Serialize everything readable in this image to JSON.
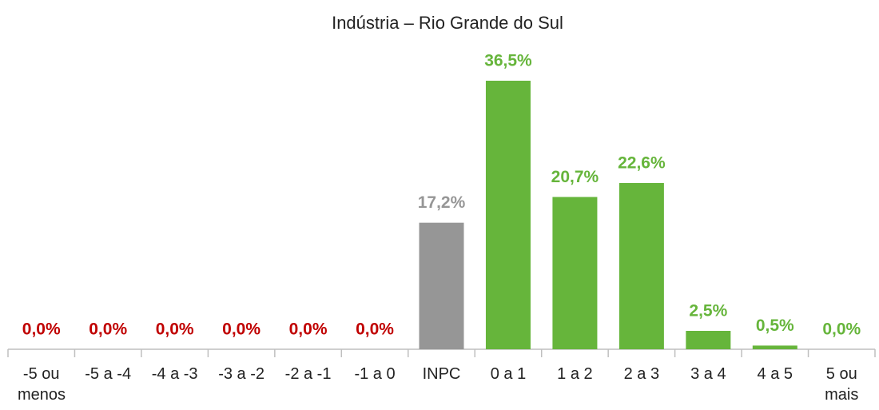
{
  "chart_data": {
    "type": "bar",
    "title": "Indústria – Rio Grande do Sul",
    "categories": [
      "-5 ou menos",
      "-5 a -4",
      "-4 a -3",
      "-3 a -2",
      "-2 a -1",
      "-1 a 0",
      "INPC",
      "0 a 1",
      "1 a 2",
      "2 a 3",
      "3 a 4",
      "4 a 5",
      "5 ou mais"
    ],
    "values": [
      0.0,
      0.0,
      0.0,
      0.0,
      0.0,
      0.0,
      17.2,
      36.5,
      20.7,
      22.6,
      2.5,
      0.5,
      0.0
    ],
    "value_labels": [
      "0,0%",
      "0,0%",
      "0,0%",
      "0,0%",
      "0,0%",
      "0,0%",
      "17,2%",
      "36,5%",
      "20,7%",
      "22,6%",
      "2,5%",
      "0,5%",
      "0,0%"
    ],
    "colors": [
      "#c00000",
      "#c00000",
      "#c00000",
      "#c00000",
      "#c00000",
      "#c00000",
      "#969696",
      "#66b53b",
      "#66b53b",
      "#66b53b",
      "#66b53b",
      "#66b53b",
      "#66b53b"
    ],
    "label_colors": [
      "#c00000",
      "#c00000",
      "#c00000",
      "#c00000",
      "#c00000",
      "#c00000",
      "#969696",
      "#66b53b",
      "#66b53b",
      "#66b53b",
      "#66b53b",
      "#66b53b",
      "#66b53b"
    ]
  }
}
